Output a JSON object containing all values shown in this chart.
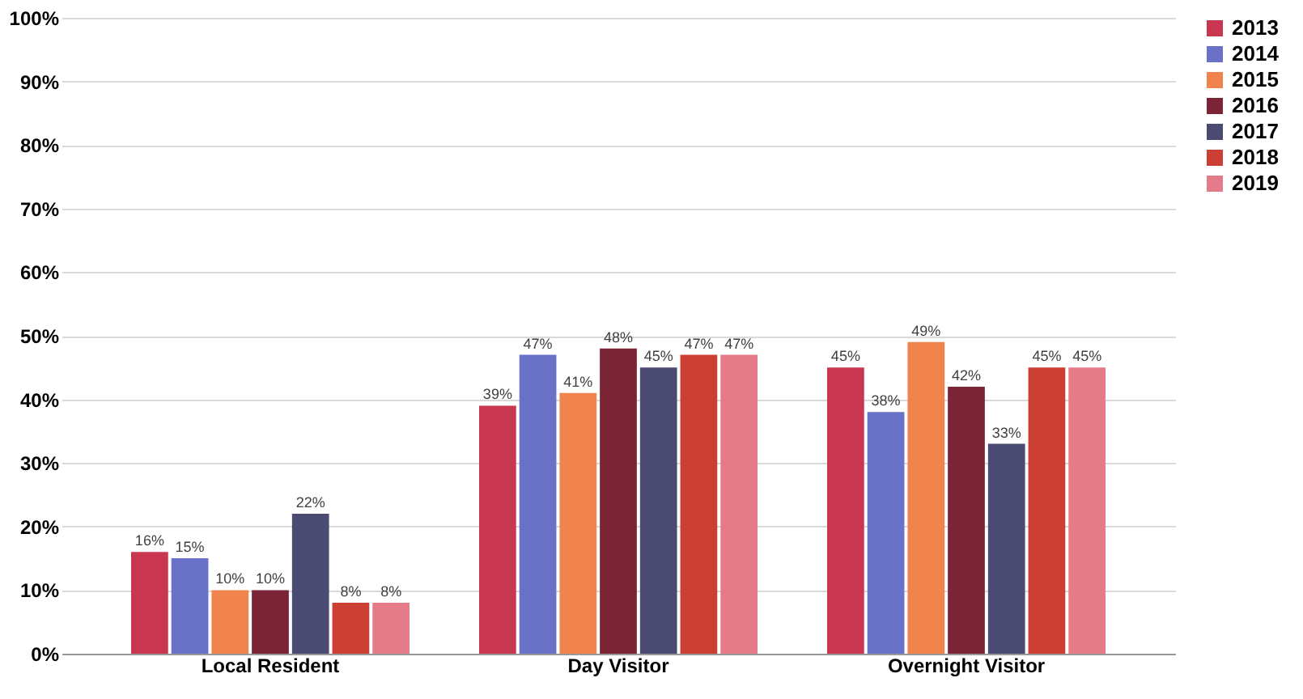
{
  "chart_data": {
    "type": "bar",
    "categories": [
      "Local Resident",
      "Day Visitor",
      "Overnight Visitor"
    ],
    "series": [
      {
        "name": "2013",
        "color": "#c8374f",
        "values": [
          16,
          39,
          45
        ],
        "value_labels": [
          "16%",
          "39%",
          "45%"
        ]
      },
      {
        "name": "2014",
        "color": "#6a72c8",
        "values": [
          15,
          47,
          38
        ],
        "value_labels": [
          "15%",
          "47%",
          "38%"
        ]
      },
      {
        "name": "2015",
        "color": "#f0844c",
        "values": [
          10,
          41,
          49
        ],
        "value_labels": [
          "10%",
          "41%",
          "49%"
        ]
      },
      {
        "name": "2016",
        "color": "#7a2436",
        "values": [
          10,
          48,
          42
        ],
        "value_labels": [
          "10%",
          "48%",
          "42%"
        ]
      },
      {
        "name": "2017",
        "color": "#4a4a72",
        "values": [
          22,
          45,
          33
        ],
        "value_labels": [
          "22%",
          "45%",
          "33%"
        ]
      },
      {
        "name": "2018",
        "color": "#cc3f35",
        "values": [
          8,
          47,
          45
        ],
        "value_labels": [
          "8%",
          "47%",
          "45%"
        ]
      },
      {
        "name": "2019",
        "color": "#e57a88",
        "values": [
          8,
          47,
          45
        ],
        "value_labels": [
          "8%",
          "47%",
          "45%"
        ]
      }
    ],
    "ylim": [
      0,
      100
    ],
    "yticks": [
      {
        "value": 0,
        "label": "0%"
      },
      {
        "value": 10,
        "label": "10%"
      },
      {
        "value": 20,
        "label": "20%"
      },
      {
        "value": 30,
        "label": "30%"
      },
      {
        "value": 40,
        "label": "40%"
      },
      {
        "value": 50,
        "label": "50%"
      },
      {
        "value": 60,
        "label": "60%"
      },
      {
        "value": 70,
        "label": "70%"
      },
      {
        "value": 80,
        "label": "80%"
      },
      {
        "value": 90,
        "label": "90%"
      },
      {
        "value": 100,
        "label": "100%"
      }
    ],
    "grid": "y",
    "legend": "right"
  }
}
